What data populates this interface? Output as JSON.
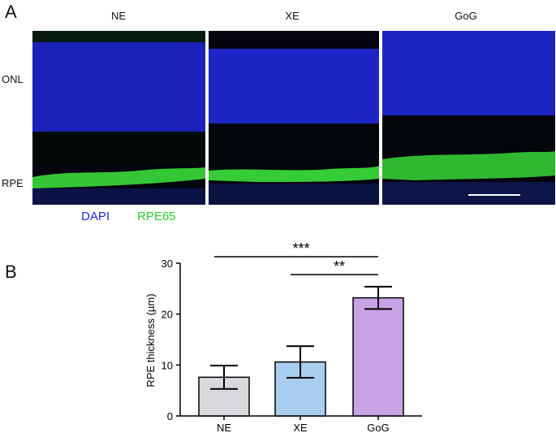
{
  "panel_a": {
    "letter": "A",
    "columns": [
      "NE",
      "XE",
      "GoG"
    ],
    "row_labels": {
      "onl": "ONL",
      "rpe": "RPE"
    },
    "stains": [
      {
        "label": "DAPI",
        "color": "#2323dc"
      },
      {
        "label": "RPE65",
        "color": "#2ecc2e"
      }
    ],
    "colors": {
      "nuclei": "#1f2ad0",
      "rpe65": "#3cd63c",
      "background": "#05050f"
    }
  },
  "panel_b": {
    "letter": "B",
    "significance": [
      {
        "from": "NE",
        "to": "GoG",
        "label": "***"
      },
      {
        "from": "XE",
        "to": "GoG",
        "label": "**"
      }
    ]
  },
  "chart_data": {
    "type": "bar",
    "categories": [
      "NE",
      "XE",
      "GoG"
    ],
    "values": [
      7.6,
      10.6,
      23.2
    ],
    "errors": [
      2.3,
      3.1,
      2.2
    ],
    "colors": [
      "#d9d9dd",
      "#a9cdee",
      "#c8a3e6"
    ],
    "ylabel": "RPE thickness (µm)",
    "xlabel": "",
    "ylim": [
      0,
      30
    ],
    "yticks": [
      0,
      10,
      20,
      30
    ],
    "grid": false
  }
}
